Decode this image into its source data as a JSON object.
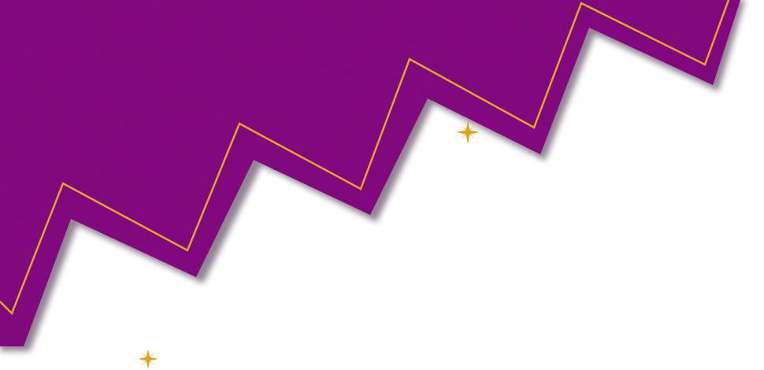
{
  "colors": {
    "background": "#ffffff",
    "band_fill": "#7d0a7a",
    "band_texture": "#6a0868",
    "band_shadow": "#3a1a3a",
    "gold_line": "#e0a72a",
    "sparkle": "#d9a520"
  },
  "decorations": {
    "band": "purple-zigzag-band",
    "border": "gold-zigzag-line",
    "sparkles": [
      "sparkle-icon",
      "sparkle-icon"
    ]
  }
}
